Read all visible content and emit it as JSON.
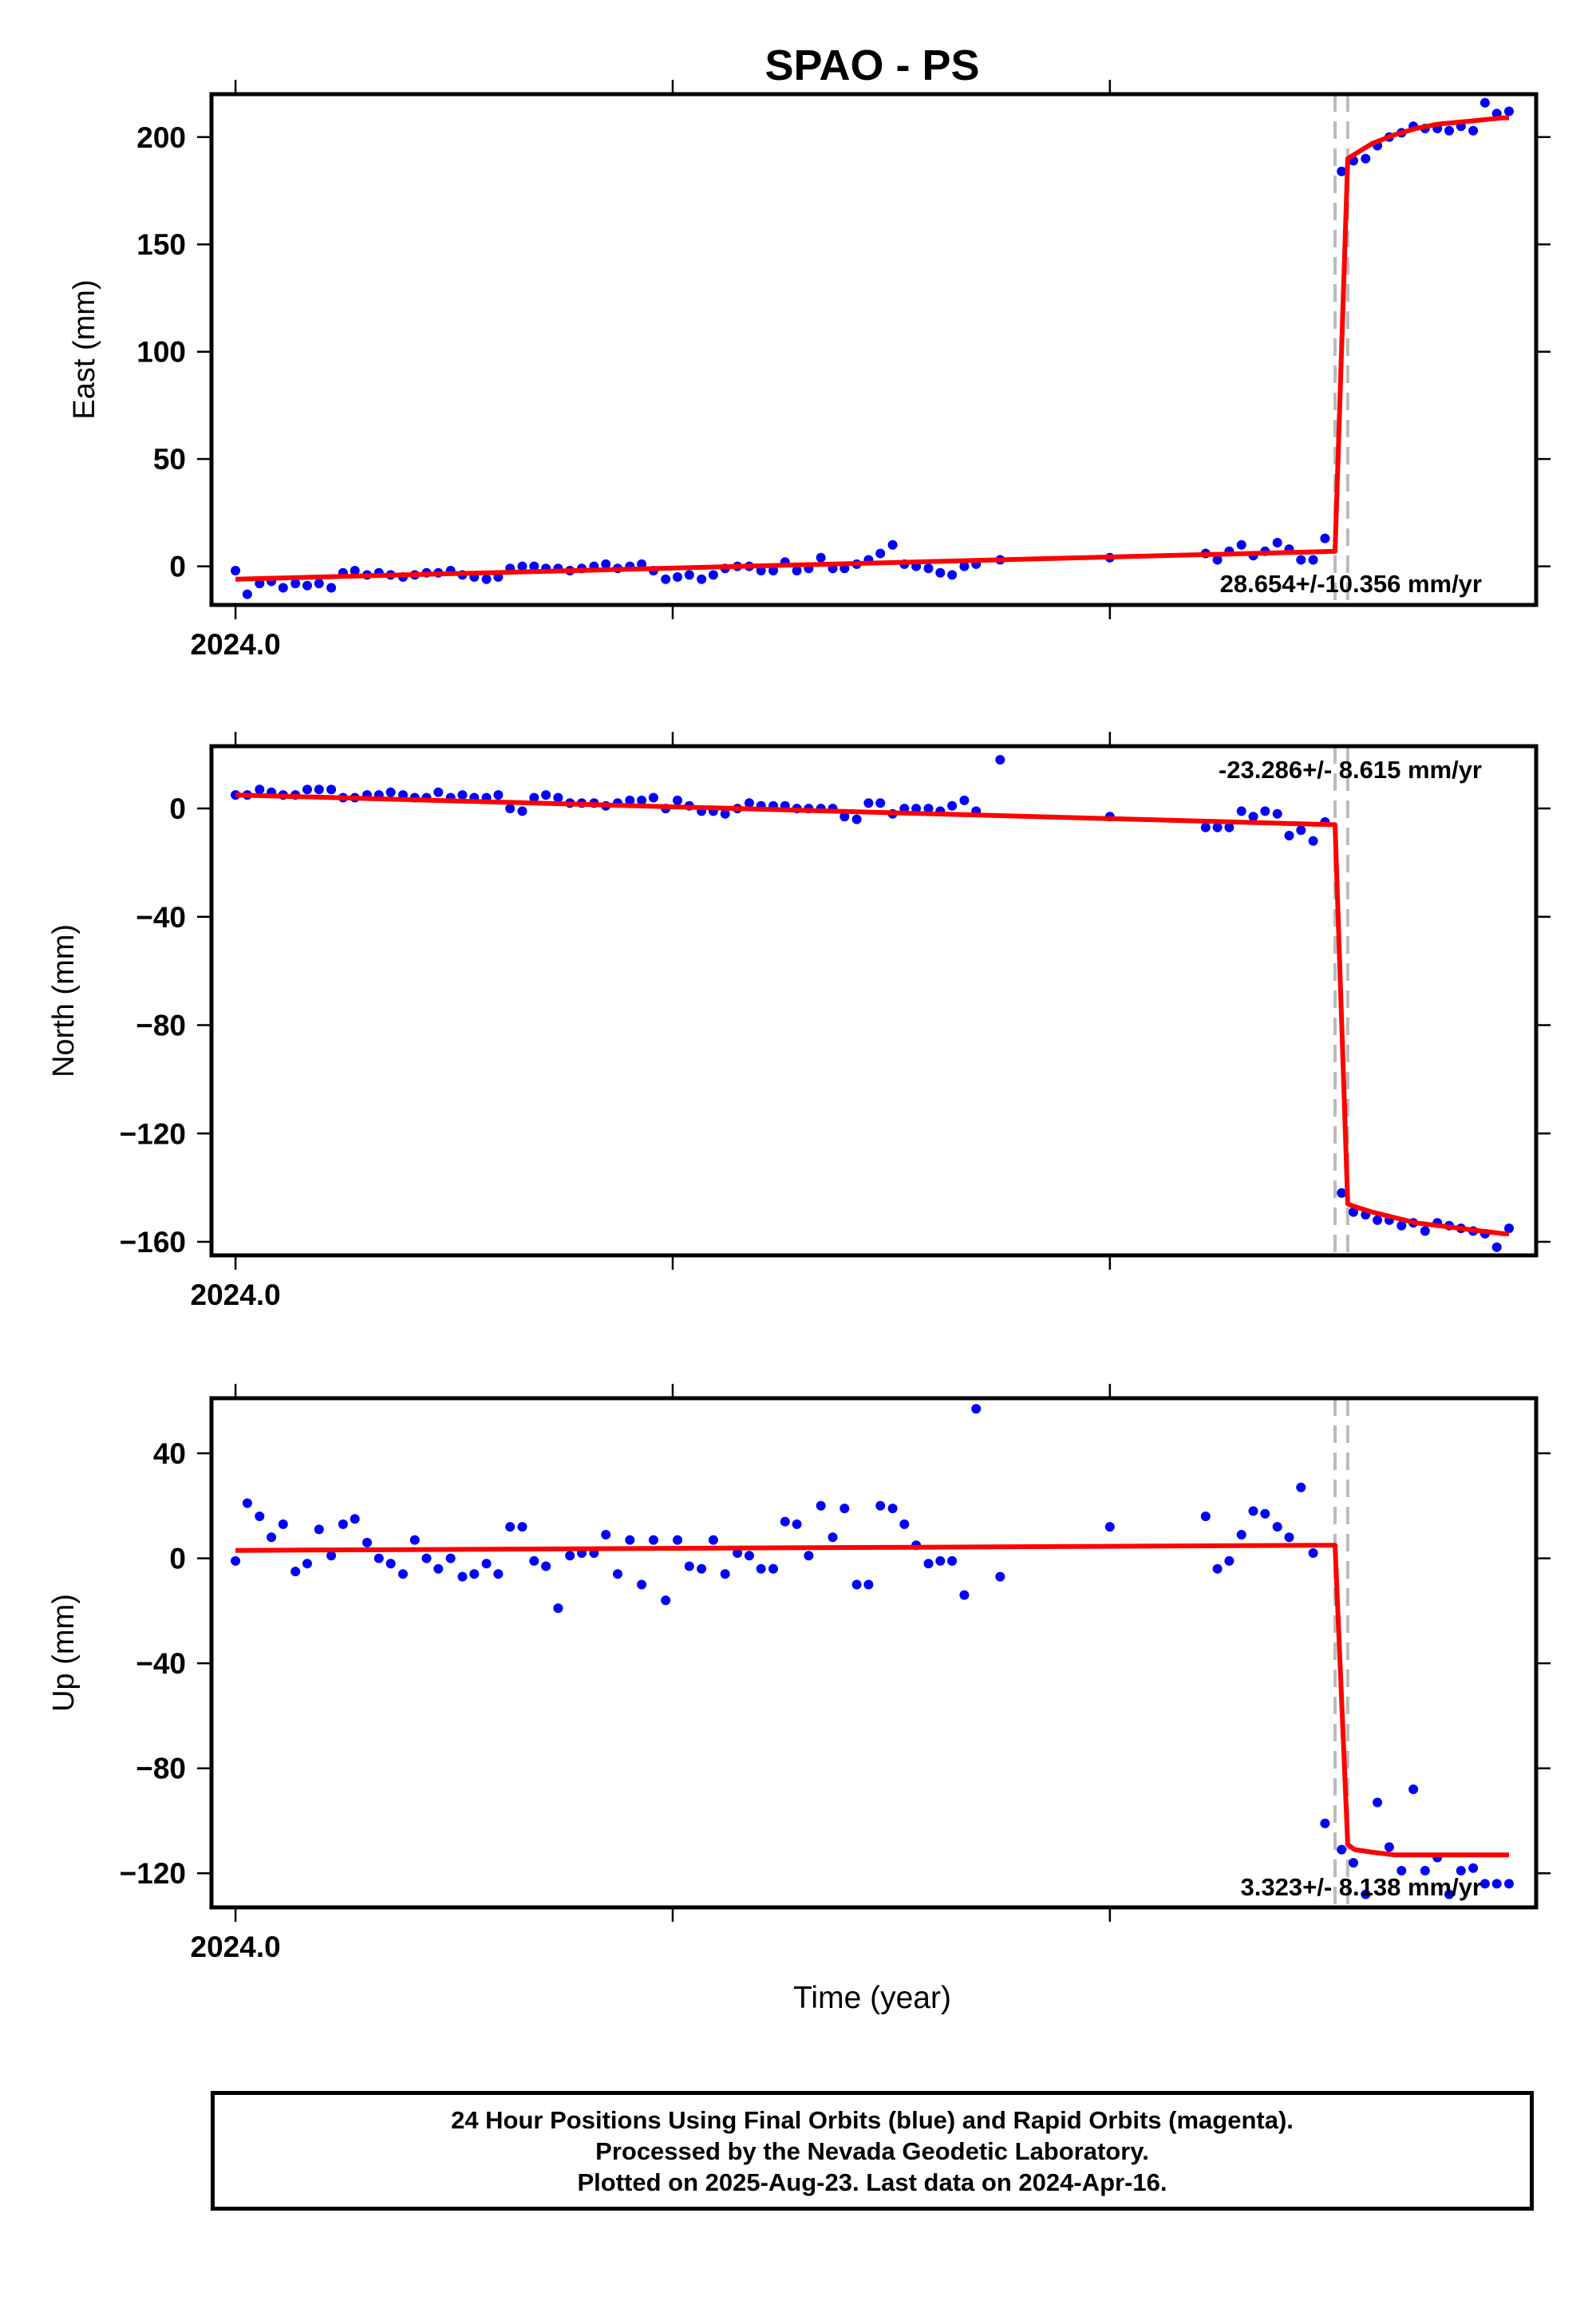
{
  "title": "SPAO - PS",
  "xlabel": "Time (year)",
  "x_tick_label": "2024.0",
  "colors": {
    "final_orbits": "#0000ff",
    "rapid_orbits": "#ff00ff",
    "model": "#ff0000",
    "offset_lines": "#bbbbbb"
  },
  "footer": {
    "line1": "24 Hour Positions Using Final Orbits (blue) and Rapid Orbits (magenta).",
    "line2": "Processed by the Nevada Geodetic Laboratory.",
    "line3": "Plotted on 2025-Aug-23. Last data on 2024-Apr-16."
  },
  "chart_data": [
    {
      "type": "scatter",
      "ylabel": "East (mm)",
      "ylim": [
        -18,
        220
      ],
      "xlim": [
        2023.9945,
        2024.2975
      ],
      "yticks": [
        0,
        50,
        100,
        150,
        200
      ],
      "xticks": [
        2024.0,
        2024.1,
        2024.2
      ],
      "xtick_labels": [
        "2024.0",
        "",
        ""
      ],
      "rate_text": "28.654+/-10.356 mm/yr",
      "rate_corner": "bottom-right",
      "offset_dates": [
        2024.2515,
        2024.2544
      ],
      "x": [
        2024.0,
        2024.0027,
        2024.0055,
        2024.0082,
        2024.0109,
        2024.0137,
        2024.0164,
        2024.0191,
        2024.0219,
        2024.0246,
        2024.0273,
        2024.0301,
        2024.0328,
        2024.0355,
        2024.0383,
        2024.041,
        2024.0437,
        2024.0464,
        2024.0492,
        2024.0519,
        2024.0546,
        2024.0574,
        2024.0601,
        2024.0628,
        2024.0656,
        2024.0683,
        2024.071,
        2024.0738,
        2024.0765,
        2024.0792,
        2024.082,
        2024.0847,
        2024.0874,
        2024.0902,
        2024.0929,
        2024.0956,
        2024.0984,
        2024.1011,
        2024.1038,
        2024.1066,
        2024.1093,
        2024.112,
        2024.1148,
        2024.1175,
        2024.1202,
        2024.123,
        2024.1257,
        2024.1284,
        2024.1311,
        2024.1339,
        2024.1366,
        2024.1393,
        2024.1421,
        2024.1448,
        2024.1475,
        2024.1503,
        2024.153,
        2024.1557,
        2024.1585,
        2024.1612,
        2024.1639,
        2024.1667,
        2024.1694,
        2024.1749,
        2024.2,
        2024.2219,
        2024.2246,
        2024.2273,
        2024.2301,
        2024.2328,
        2024.2355,
        2024.2383,
        2024.241,
        2024.2437,
        2024.2465,
        2024.2492,
        2024.253,
        2024.2557,
        2024.2585,
        2024.2612,
        2024.2639,
        2024.2667,
        2024.2694,
        2024.2721,
        2024.2749,
        2024.2776,
        2024.2803,
        2024.2831,
        2024.2858,
        2024.2885,
        2024.2913
      ],
      "y": [
        -2,
        -13,
        -8,
        -7,
        -10,
        -8,
        -9,
        -8,
        -10,
        -3,
        -2,
        -4,
        -3,
        -4,
        -5,
        -4,
        -3,
        -3,
        -2,
        -4,
        -5,
        -6,
        -5,
        -1,
        0,
        0,
        -1,
        -1,
        -2,
        -1,
        0,
        1,
        -1,
        0,
        1,
        -2,
        -6,
        -5,
        -4,
        -6,
        -4,
        -1,
        0,
        0,
        -2,
        -2,
        2,
        -2,
        -1,
        4,
        -1,
        -1,
        1,
        3,
        6,
        10,
        1,
        0,
        -1,
        -3,
        -4,
        0,
        1,
        3,
        4,
        6,
        3,
        7,
        10,
        5,
        7,
        11,
        8,
        3,
        3,
        13,
        184,
        189,
        190,
        196,
        200,
        202,
        205,
        204,
        204,
        203,
        205,
        203,
        216,
        211,
        212
      ],
      "model_x": [
        2024.0,
        2024.2515,
        2024.2544,
        2024.256,
        2024.26,
        2024.265,
        2024.27,
        2024.275,
        2024.28,
        2024.285,
        2024.29,
        2024.2913
      ],
      "model_y": [
        -6,
        7,
        190,
        192,
        197,
        201,
        204,
        206,
        207,
        208,
        209,
        209
      ]
    },
    {
      "type": "scatter",
      "ylabel": "North (mm)",
      "ylim": [
        -165,
        23
      ],
      "xlim": [
        2023.9945,
        2024.2975
      ],
      "yticks": [
        0,
        -40,
        -80,
        -120,
        -160
      ],
      "ytick_labels": [
        "0",
        "−40",
        "−80",
        "−120",
        "−160"
      ],
      "xticks": [
        2024.0,
        2024.1,
        2024.2
      ],
      "xtick_labels": [
        "2024.0",
        "",
        ""
      ],
      "rate_text": "-23.286+/- 8.615 mm/yr",
      "rate_corner": "top-right",
      "offset_dates": [
        2024.2515,
        2024.2544
      ],
      "x": [
        2024.0,
        2024.0027,
        2024.0055,
        2024.0082,
        2024.0109,
        2024.0137,
        2024.0164,
        2024.0191,
        2024.0219,
        2024.0246,
        2024.0273,
        2024.0301,
        2024.0328,
        2024.0355,
        2024.0383,
        2024.041,
        2024.0437,
        2024.0464,
        2024.0492,
        2024.0519,
        2024.0546,
        2024.0574,
        2024.0601,
        2024.0628,
        2024.0656,
        2024.0683,
        2024.071,
        2024.0738,
        2024.0765,
        2024.0792,
        2024.082,
        2024.0847,
        2024.0874,
        2024.0902,
        2024.0929,
        2024.0956,
        2024.0984,
        2024.1011,
        2024.1038,
        2024.1066,
        2024.1093,
        2024.112,
        2024.1148,
        2024.1175,
        2024.1202,
        2024.123,
        2024.1257,
        2024.1284,
        2024.1311,
        2024.1339,
        2024.1366,
        2024.1393,
        2024.1421,
        2024.1448,
        2024.1475,
        2024.1503,
        2024.153,
        2024.1557,
        2024.1585,
        2024.1612,
        2024.1639,
        2024.1667,
        2024.1694,
        2024.1749,
        2024.2,
        2024.2219,
        2024.2246,
        2024.2273,
        2024.2301,
        2024.2328,
        2024.2355,
        2024.2383,
        2024.241,
        2024.2437,
        2024.2465,
        2024.2492,
        2024.253,
        2024.2557,
        2024.2585,
        2024.2612,
        2024.2639,
        2024.2667,
        2024.2694,
        2024.2721,
        2024.2749,
        2024.2776,
        2024.2803,
        2024.2831,
        2024.2858,
        2024.2885,
        2024.2913
      ],
      "y": [
        5,
        5,
        7,
        6,
        5,
        5,
        7,
        7,
        7,
        4,
        4,
        5,
        5,
        6,
        5,
        4,
        4,
        6,
        4,
        5,
        4,
        4,
        5,
        0,
        -1,
        4,
        5,
        4,
        2,
        2,
        2,
        1,
        2,
        3,
        3,
        4,
        0,
        3,
        1,
        -1,
        -1,
        -2,
        0,
        2,
        1,
        1,
        1,
        0,
        0,
        0,
        0,
        -3,
        -4,
        2,
        2,
        -2,
        0,
        0,
        0,
        -1,
        1,
        3,
        -1,
        18,
        -3,
        -7,
        -7,
        -7,
        -1,
        -3,
        -1,
        -2,
        -10,
        -8,
        -12,
        -5,
        -142,
        -149,
        -150,
        -152,
        -152,
        -154,
        -153,
        -156,
        -153,
        -154,
        -155,
        -156,
        -157,
        -162,
        -155
      ],
      "model_x": [
        2024.0,
        2024.2515,
        2024.2544,
        2024.256,
        2024.26,
        2024.265,
        2024.27,
        2024.275,
        2024.28,
        2024.285,
        2024.29,
        2024.2913
      ],
      "model_y": [
        5,
        -6,
        -146,
        -147,
        -149,
        -151,
        -153,
        -154,
        -155,
        -156,
        -157,
        -157
      ]
    },
    {
      "type": "scatter",
      "ylabel": "Up (mm)",
      "ylim": [
        -133,
        61
      ],
      "xlim": [
        2023.9945,
        2024.2975
      ],
      "yticks": [
        40,
        0,
        -40,
        -80,
        -120
      ],
      "ytick_labels": [
        "40",
        "0",
        "−40",
        "−80",
        "−120"
      ],
      "xticks": [
        2024.0,
        2024.1,
        2024.2
      ],
      "xtick_labels": [
        "2024.0",
        "",
        ""
      ],
      "rate_text": "3.323+/- 8.138 mm/yr",
      "rate_corner": "bottom-right",
      "offset_dates": [
        2024.2515,
        2024.2544
      ],
      "x": [
        2024.0,
        2024.0027,
        2024.0055,
        2024.0082,
        2024.0109,
        2024.0137,
        2024.0164,
        2024.0191,
        2024.0219,
        2024.0246,
        2024.0273,
        2024.0301,
        2024.0328,
        2024.0355,
        2024.0383,
        2024.041,
        2024.0437,
        2024.0464,
        2024.0492,
        2024.0519,
        2024.0546,
        2024.0574,
        2024.0601,
        2024.0628,
        2024.0656,
        2024.0683,
        2024.071,
        2024.0738,
        2024.0765,
        2024.0792,
        2024.082,
        2024.0847,
        2024.0874,
        2024.0902,
        2024.0929,
        2024.0956,
        2024.0984,
        2024.1011,
        2024.1038,
        2024.1066,
        2024.1093,
        2024.112,
        2024.1148,
        2024.1175,
        2024.1202,
        2024.123,
        2024.1257,
        2024.1284,
        2024.1311,
        2024.1339,
        2024.1366,
        2024.1393,
        2024.1421,
        2024.1448,
        2024.1475,
        2024.1503,
        2024.153,
        2024.1557,
        2024.1585,
        2024.1612,
        2024.1639,
        2024.1667,
        2024.1694,
        2024.1749,
        2024.2,
        2024.2219,
        2024.2246,
        2024.2273,
        2024.2301,
        2024.2328,
        2024.2355,
        2024.2383,
        2024.241,
        2024.2437,
        2024.2465,
        2024.2492,
        2024.253,
        2024.2557,
        2024.2585,
        2024.2612,
        2024.2639,
        2024.2667,
        2024.2694,
        2024.2721,
        2024.2749,
        2024.2776,
        2024.2803,
        2024.2831,
        2024.2858,
        2024.2885,
        2024.2913
      ],
      "y": [
        -1,
        21,
        16,
        8,
        13,
        -5,
        -2,
        11,
        1,
        13,
        15,
        6,
        0,
        -2,
        -6,
        7,
        0,
        -4,
        0,
        -7,
        -6,
        -2,
        -6,
        12,
        12,
        -1,
        -3,
        -19,
        1,
        2,
        2,
        9,
        -6,
        7,
        -10,
        7,
        -16,
        7,
        -3,
        -4,
        7,
        -6,
        2,
        1,
        -4,
        -4,
        14,
        13,
        1,
        20,
        8,
        19,
        -10,
        -10,
        20,
        19,
        13,
        5,
        -2,
        -1,
        -1,
        -14,
        57,
        -7,
        12,
        16,
        -4,
        -1,
        9,
        18,
        17,
        12,
        8,
        27,
        2,
        -101,
        -111,
        -116,
        -128,
        -93,
        -110,
        -119,
        -88,
        -119,
        -114,
        -128,
        -119,
        -118,
        -124,
        -124,
        -124
      ],
      "model_x": [
        2024.0,
        2024.2515,
        2024.2544,
        2024.256,
        2024.26,
        2024.265,
        2024.27,
        2024.275,
        2024.28,
        2024.285,
        2024.29,
        2024.2913
      ],
      "model_y": [
        3,
        5,
        -109,
        -111,
        -112,
        -113,
        -113,
        -113,
        -113,
        -113,
        -113,
        -113
      ]
    }
  ]
}
